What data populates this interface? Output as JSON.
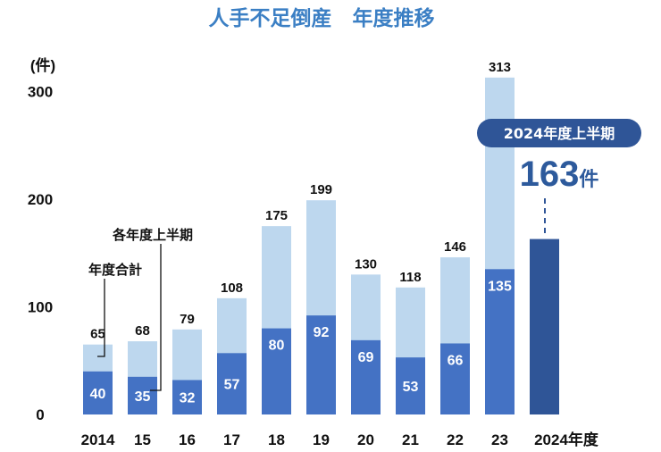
{
  "chart_data": {
    "type": "bar",
    "title": "人手不足倒産　年度推移",
    "ylabel": "(件)",
    "ylim": [
      0,
      300
    ],
    "yticks": [
      "0",
      "100",
      "200",
      "300"
    ],
    "categories": [
      "2014",
      "15",
      "16",
      "17",
      "18",
      "19",
      "20",
      "21",
      "22",
      "23",
      "2024年度"
    ],
    "series": [
      {
        "name": "年度合計",
        "values": [
          65,
          68,
          79,
          108,
          175,
          199,
          130,
          118,
          146,
          313,
          null
        ]
      },
      {
        "name": "各年度上半期",
        "values": [
          40,
          35,
          32,
          57,
          80,
          92,
          69,
          53,
          66,
          135,
          163
        ]
      }
    ],
    "highlight": {
      "badge": "2024年度上半期",
      "value": "163",
      "unit": "件"
    },
    "colors": {
      "total": "#bdd7ee",
      "half": "#4472c4",
      "current": "#2f5597",
      "title": "#3b7fc4",
      "badge": "#2f5597"
    },
    "grid": false,
    "legend": "annotations"
  }
}
